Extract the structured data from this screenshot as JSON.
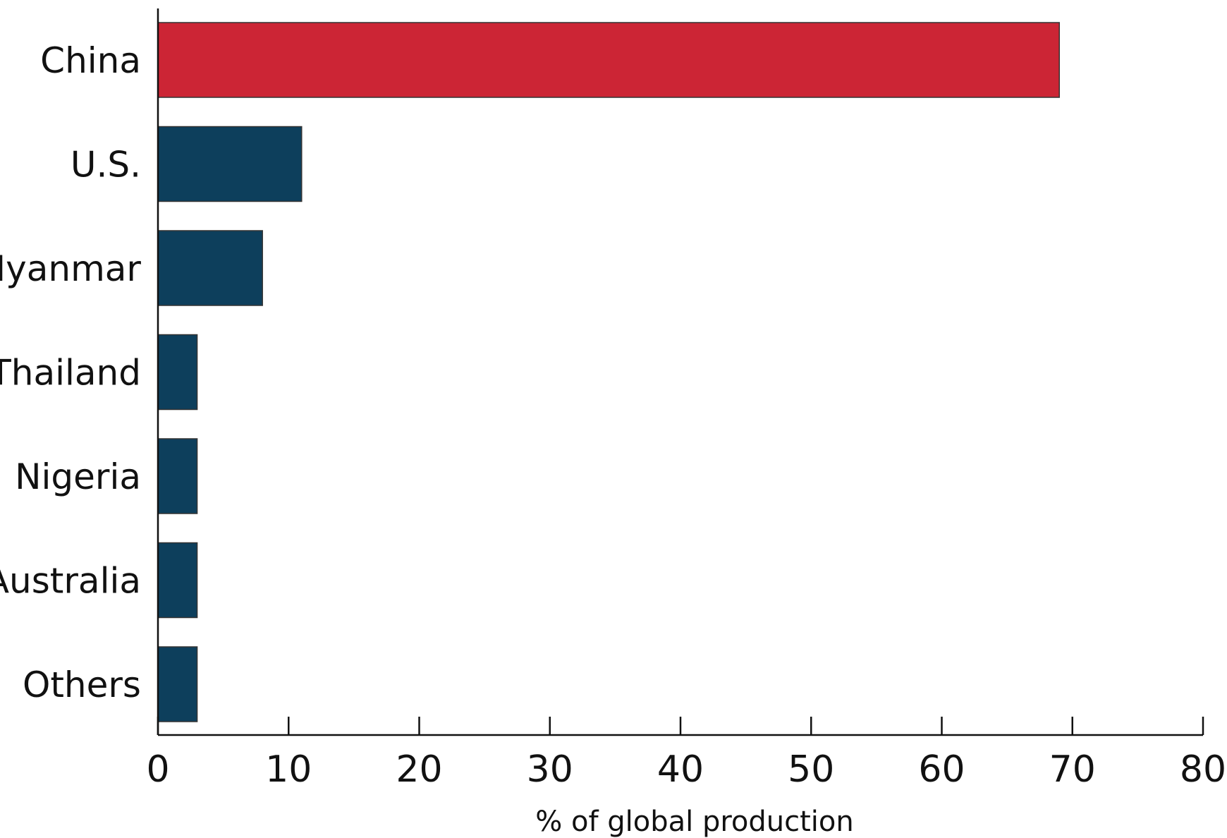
{
  "chart_data": {
    "type": "bar",
    "orientation": "horizontal",
    "title": "",
    "xlabel": "% of global production",
    "ylabel": "",
    "xlim": [
      0,
      80
    ],
    "xticks": [
      0,
      10,
      20,
      30,
      40,
      50,
      60,
      70,
      80
    ],
    "grid": false,
    "categories": [
      "China",
      "U.S.",
      "Myanmar",
      "Thailand",
      "Nigeria",
      "Australia",
      "Others"
    ],
    "values": [
      69,
      11,
      8,
      3,
      3,
      3,
      3
    ],
    "colors": {
      "highlight": "#CC2535",
      "default": "#0D3F5C"
    },
    "highlight_category": "China"
  }
}
